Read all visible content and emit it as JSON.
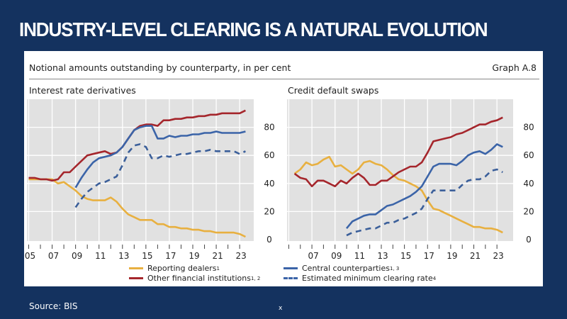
{
  "slide": {
    "title": "INDUSTRY-LEVEL CLEARING IS A NATURAL EVOLUTION",
    "source": "Source: BIS",
    "footer_mark": "x"
  },
  "card": {
    "subtitle": "Notional amounts outstanding by counterparty, in per cent",
    "graph_id": "Graph A.8"
  },
  "colors": {
    "reporting_dealers": "#e8b040",
    "other_financial": "#a5262c",
    "ccp": "#3b64a8",
    "min_clearing": "#3b5f9a",
    "plot_bg": "#e1e1e1",
    "slide_bg": "#14325f"
  },
  "legend": [
    {
      "label": "Reporting dealers",
      "sup": "1",
      "style": "solid",
      "color_key": "reporting_dealers"
    },
    {
      "label": "Other financial institutions",
      "sup": "1, 2",
      "style": "solid",
      "color_key": "other_financial"
    },
    {
      "label": "Central counterparties",
      "sup": "1, 3",
      "style": "solid",
      "color_key": "ccp"
    },
    {
      "label": "Estimated minimum clearing rate",
      "sup": "4",
      "style": "dashed",
      "color_key": "min_clearing"
    }
  ],
  "chart_data": [
    {
      "type": "line",
      "title": "Interest rate derivatives",
      "xlabel": "",
      "ylabel": "per cent",
      "ylim": [
        0,
        100
      ],
      "xlim": [
        2005,
        2024
      ],
      "yticks": [
        0,
        20,
        40,
        60,
        80
      ],
      "xtick_labels": [
        "05",
        "07",
        "09",
        "11",
        "13",
        "15",
        "17",
        "19",
        "21",
        "23"
      ],
      "xtick_years": [
        2005,
        2007,
        2009,
        2011,
        2013,
        2015,
        2017,
        2019,
        2021,
        2023
      ],
      "grid": true,
      "yaxis_side": "right",
      "series": [
        {
          "name": "Reporting dealers",
          "key": "reporting_dealers",
          "dash": false,
          "x": [
            2005,
            2005.5,
            2006,
            2006.5,
            2007,
            2007.5,
            2008,
            2008.5,
            2009,
            2009.5,
            2010,
            2010.5,
            2011,
            2011.5,
            2012,
            2012.5,
            2013,
            2013.5,
            2014,
            2014.5,
            2015,
            2015.5,
            2016,
            2016.5,
            2017,
            2017.5,
            2018,
            2018.5,
            2019,
            2019.5,
            2020,
            2020.5,
            2021,
            2021.5,
            2022,
            2022.5,
            2023,
            2023.5
          ],
          "values": [
            43,
            43,
            43,
            43,
            43,
            40,
            41,
            38,
            35,
            31,
            29,
            28,
            28,
            28,
            30,
            27,
            22,
            18,
            16,
            14,
            14,
            14,
            11,
            11,
            9,
            9,
            8,
            8,
            7,
            7,
            6,
            6,
            5,
            5,
            5,
            5,
            4,
            2
          ]
        },
        {
          "name": "Other financial institutions",
          "key": "other_financial",
          "dash": false,
          "x": [
            2005,
            2005.5,
            2006,
            2006.5,
            2007,
            2007.5,
            2008,
            2008.5,
            2009,
            2009.5,
            2010,
            2010.5,
            2011,
            2011.5,
            2012,
            2012.5,
            2013,
            2013.5,
            2014,
            2014.5,
            2015,
            2015.5,
            2016,
            2016.5,
            2017,
            2017.5,
            2018,
            2018.5,
            2019,
            2019.5,
            2020,
            2020.5,
            2021,
            2021.5,
            2022,
            2022.5,
            2023,
            2023.5
          ],
          "values": [
            44,
            44,
            43,
            43,
            42,
            43,
            48,
            48,
            52,
            56,
            60,
            61,
            62,
            63,
            61,
            62,
            66,
            72,
            78,
            81,
            82,
            82,
            81,
            85,
            85,
            86,
            86,
            87,
            87,
            88,
            88,
            89,
            89,
            90,
            90,
            90,
            90,
            92
          ]
        },
        {
          "name": "Central counterparties",
          "key": "ccp",
          "dash": false,
          "x": [
            2009,
            2009.5,
            2010,
            2010.5,
            2011,
            2011.5,
            2012,
            2012.5,
            2013,
            2013.5,
            2014,
            2014.5,
            2015,
            2015.5,
            2016,
            2016.5,
            2017,
            2017.5,
            2018,
            2018.5,
            2019,
            2019.5,
            2020,
            2020.5,
            2021,
            2021.5,
            2022,
            2022.5,
            2023,
            2023.5
          ],
          "values": [
            37,
            44,
            50,
            55,
            58,
            59,
            60,
            62,
            66,
            72,
            78,
            80,
            81,
            81,
            72,
            72,
            74,
            73,
            74,
            74,
            75,
            75,
            76,
            76,
            77,
            76,
            76,
            76,
            76,
            77
          ]
        },
        {
          "name": "Estimated minimum clearing rate",
          "key": "min_clearing",
          "dash": true,
          "x": [
            2009,
            2009.5,
            2010,
            2010.5,
            2011,
            2011.5,
            2012,
            2012.5,
            2013,
            2013.5,
            2014,
            2014.5,
            2015,
            2015.5,
            2016,
            2016.5,
            2017,
            2017.5,
            2018,
            2018.5,
            2019,
            2019.5,
            2020,
            2020.5,
            2021,
            2021.5,
            2022,
            2022.5,
            2023,
            2023.5
          ],
          "values": [
            23,
            29,
            34,
            37,
            40,
            41,
            43,
            45,
            53,
            62,
            67,
            68,
            66,
            58,
            58,
            60,
            59,
            60,
            61,
            61,
            62,
            63,
            63,
            64,
            63,
            63,
            63,
            63,
            61,
            63
          ]
        }
      ]
    },
    {
      "type": "line",
      "title": "Credit default swaps",
      "xlabel": "",
      "ylabel": "per cent",
      "ylim": [
        0,
        100
      ],
      "xlim": [
        2005,
        2024
      ],
      "yticks": [
        0,
        20,
        40,
        60,
        80
      ],
      "xtick_labels": [
        "07",
        "09",
        "11",
        "13",
        "15",
        "17",
        "19",
        "21",
        "23"
      ],
      "xtick_years": [
        2007,
        2009,
        2011,
        2013,
        2015,
        2017,
        2019,
        2021,
        2023
      ],
      "grid": true,
      "yaxis_side": "right",
      "series": [
        {
          "name": "Reporting dealers",
          "key": "reporting_dealers",
          "dash": false,
          "x": [
            2005.5,
            2006,
            2006.5,
            2007,
            2007.5,
            2008,
            2008.5,
            2009,
            2009.5,
            2010,
            2010.5,
            2011,
            2011.5,
            2012,
            2012.5,
            2013,
            2013.5,
            2014,
            2014.5,
            2015,
            2015.5,
            2016,
            2016.5,
            2017,
            2017.5,
            2018,
            2018.5,
            2019,
            2019.5,
            2020,
            2020.5,
            2021,
            2021.5,
            2022,
            2022.5,
            2023,
            2023.5
          ],
          "values": [
            47,
            50,
            55,
            53,
            54,
            57,
            59,
            52,
            53,
            50,
            47,
            50,
            55,
            56,
            54,
            53,
            50,
            46,
            43,
            42,
            40,
            38,
            35,
            28,
            22,
            21,
            19,
            17,
            15,
            13,
            11,
            9,
            9,
            8,
            8,
            7,
            5
          ]
        },
        {
          "name": "Other financial institutions",
          "key": "other_financial",
          "dash": false,
          "x": [
            2005.5,
            2006,
            2006.5,
            2007,
            2007.5,
            2008,
            2008.5,
            2009,
            2009.5,
            2010,
            2010.5,
            2011,
            2011.5,
            2012,
            2012.5,
            2013,
            2013.5,
            2014,
            2014.5,
            2015,
            2015.5,
            2016,
            2016.5,
            2017,
            2017.5,
            2018,
            2018.5,
            2019,
            2019.5,
            2020,
            2020.5,
            2021,
            2021.5,
            2022,
            2022.5,
            2023,
            2023.5
          ],
          "values": [
            47,
            44,
            43,
            38,
            42,
            42,
            40,
            38,
            42,
            40,
            44,
            47,
            44,
            39,
            39,
            42,
            42,
            45,
            48,
            50,
            52,
            52,
            55,
            62,
            70,
            71,
            72,
            73,
            75,
            76,
            78,
            80,
            82,
            82,
            84,
            85,
            87
          ]
        },
        {
          "name": "Central counterparties",
          "key": "ccp",
          "dash": false,
          "x": [
            2010,
            2010.5,
            2011,
            2011.5,
            2012,
            2012.5,
            2013,
            2013.5,
            2014,
            2014.5,
            2015,
            2015.5,
            2016,
            2016.5,
            2017,
            2017.5,
            2018,
            2018.5,
            2019,
            2019.5,
            2020,
            2020.5,
            2021,
            2021.5,
            2022,
            2022.5,
            2023,
            2023.5
          ],
          "values": [
            8,
            13,
            15,
            17,
            18,
            18,
            21,
            24,
            25,
            27,
            29,
            31,
            34,
            38,
            45,
            52,
            54,
            54,
            54,
            53,
            56,
            60,
            62,
            63,
            61,
            64,
            68,
            66
          ]
        },
        {
          "name": "Estimated minimum clearing rate",
          "key": "min_clearing",
          "dash": true,
          "x": [
            2010,
            2010.5,
            2011,
            2011.5,
            2012,
            2012.5,
            2013,
            2013.5,
            2014,
            2014.5,
            2015,
            2015.5,
            2016,
            2016.5,
            2017,
            2017.5,
            2018,
            2018.5,
            2019,
            2019.5,
            2020,
            2020.5,
            2021,
            2021.5,
            2022,
            2022.5,
            2023,
            2023.5
          ],
          "values": [
            3,
            5,
            6,
            7,
            8,
            8,
            10,
            12,
            12,
            14,
            15,
            17,
            19,
            22,
            29,
            35,
            35,
            35,
            35,
            35,
            39,
            42,
            43,
            43,
            45,
            49,
            50,
            48
          ]
        }
      ]
    }
  ]
}
